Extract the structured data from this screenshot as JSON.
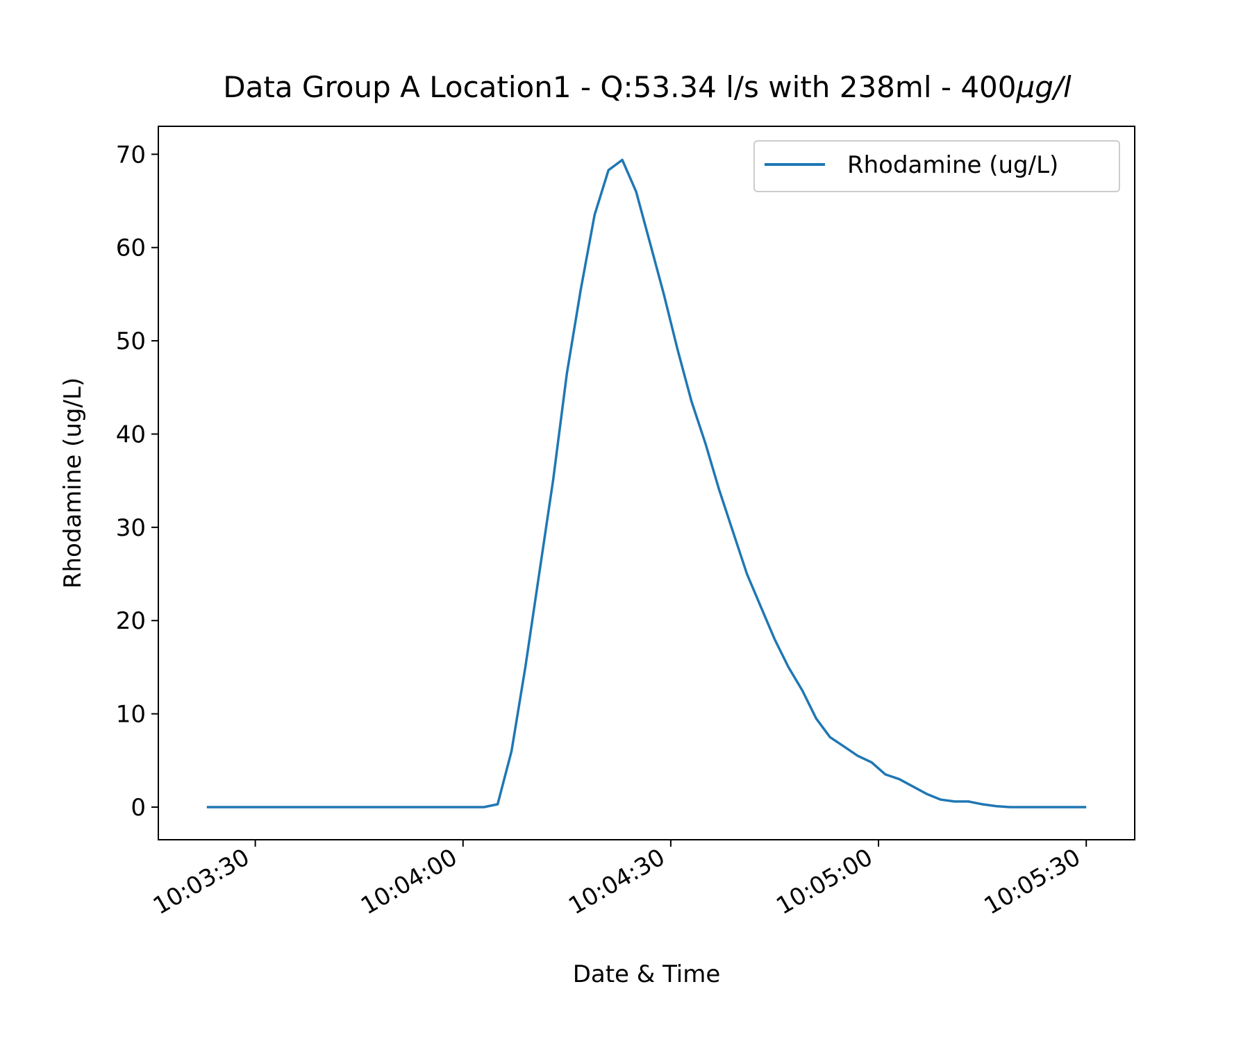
{
  "chart_data": {
    "type": "line",
    "title_main": "Data Group A Location1 - Q:53.34 l/s with 238ml - 400",
    "title_unit": "μg/l",
    "xlabel": "Date & Time",
    "ylabel": "Rhodamine (ug/L)",
    "xlim": [
      "10:03:16",
      "10:05:37"
    ],
    "ylim": [
      -3.5,
      73
    ],
    "x_ticks": [
      "10:03:30",
      "10:04:00",
      "10:04:30",
      "10:05:00",
      "10:05:30"
    ],
    "y_ticks": [
      0,
      10,
      20,
      30,
      40,
      50,
      60,
      70
    ],
    "legend_position": "top-right",
    "grid": false,
    "series": [
      {
        "name": "Rhodamine (ug/L)",
        "color": "#1f77b4",
        "x": [
          "10:03:23",
          "10:03:25",
          "10:03:27",
          "10:03:29",
          "10:03:31",
          "10:03:33",
          "10:03:35",
          "10:03:37",
          "10:03:39",
          "10:03:41",
          "10:03:43",
          "10:03:45",
          "10:03:47",
          "10:03:49",
          "10:03:51",
          "10:03:53",
          "10:03:55",
          "10:03:57",
          "10:03:59",
          "10:04:01",
          "10:04:03",
          "10:04:05",
          "10:04:07",
          "10:04:09",
          "10:04:11",
          "10:04:13",
          "10:04:15",
          "10:04:17",
          "10:04:19",
          "10:04:21",
          "10:04:23",
          "10:04:25",
          "10:04:27",
          "10:04:29",
          "10:04:31",
          "10:04:33",
          "10:04:35",
          "10:04:37",
          "10:04:39",
          "10:04:41",
          "10:04:43",
          "10:04:45",
          "10:04:47",
          "10:04:49",
          "10:04:51",
          "10:04:53",
          "10:04:55",
          "10:04:57",
          "10:04:59",
          "10:05:01",
          "10:05:03",
          "10:05:05",
          "10:05:07",
          "10:05:09",
          "10:05:11",
          "10:05:13",
          "10:05:15",
          "10:05:17",
          "10:05:19",
          "10:05:21",
          "10:05:23",
          "10:05:25",
          "10:05:27",
          "10:05:29",
          "10:05:30"
        ],
        "values": [
          0,
          0,
          0,
          0,
          0,
          0,
          0,
          0,
          0,
          0,
          0,
          0,
          0,
          0,
          0,
          0,
          0,
          0,
          0,
          0,
          0,
          0.3,
          6.0,
          15.0,
          25.0,
          35.0,
          46.5,
          55.5,
          63.5,
          68.3,
          69.4,
          66.0,
          60.5,
          55.0,
          49.0,
          43.5,
          39.0,
          34.0,
          29.5,
          25.0,
          21.5,
          18.0,
          15.0,
          12.5,
          9.5,
          7.5,
          6.5,
          5.5,
          4.8,
          3.5,
          3.0,
          2.2,
          1.4,
          0.8,
          0.6,
          0.6,
          0.3,
          0.1,
          0,
          0,
          0,
          0,
          0,
          0,
          0
        ]
      }
    ]
  }
}
